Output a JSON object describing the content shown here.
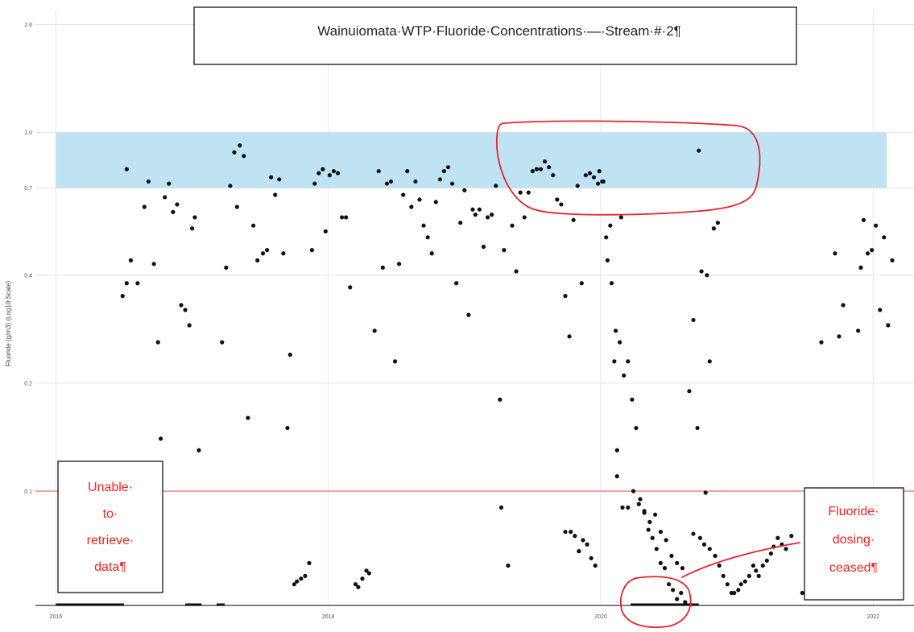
{
  "chart_data": {
    "type": "scatter",
    "title": "Wainuiomata·WTP·Fluoride·Concentrations·—·Stream·#·2¶",
    "ylabel": "Fluoride (g/m3) (Log10 Scale)",
    "xlabel": "",
    "yscale": "log10",
    "ylim": [
      0.048,
      2.2
    ],
    "xlim": [
      2015.85,
      2022.3
    ],
    "x_ticks": [
      2016,
      2018,
      2020,
      2022
    ],
    "x_tick_labels": [
      "2016",
      "2018",
      "2020",
      "2022"
    ],
    "y_ticks": [
      0.1,
      0.2,
      0.4,
      0.7,
      1.0,
      2.0
    ],
    "y_tick_labels": [
      "0.1",
      "0.2",
      "0.4",
      "0.7",
      "1.0",
      "2.0"
    ],
    "grid": true,
    "target_band": {
      "low": 0.7,
      "high": 1.0,
      "color": "#bfe3f2"
    },
    "threshold_line": {
      "value": 0.1,
      "color": "#f5a3a3"
    },
    "point_color": "#111111",
    "baseline_segments": [
      {
        "x_start": 2016.0,
        "x_end": 2016.5
      },
      {
        "x_start": 2016.95,
        "x_end": 2017.07
      },
      {
        "x_start": 2017.18,
        "x_end": 2017.24
      },
      {
        "x_start": 2020.22,
        "x_end": 2020.72
      }
    ],
    "points": [
      [
        2016.52,
        0.79
      ],
      [
        2016.55,
        0.44
      ],
      [
        2016.6,
        0.38
      ],
      [
        2016.65,
        0.62
      ],
      [
        2016.68,
        0.73
      ],
      [
        2016.72,
        0.43
      ],
      [
        2016.75,
        0.26
      ],
      [
        2016.8,
        0.66
      ],
      [
        2016.83,
        0.72
      ],
      [
        2016.86,
        0.6
      ],
      [
        2016.89,
        0.63
      ],
      [
        2016.92,
        0.33
      ],
      [
        2016.95,
        0.32
      ],
      [
        2016.98,
        0.29
      ],
      [
        2017.0,
        0.54
      ],
      [
        2017.02,
        0.58
      ],
      [
        2016.49,
        0.35
      ],
      [
        2016.52,
        0.38
      ],
      [
        2016.77,
        0.14
      ],
      [
        2017.05,
        0.13
      ],
      [
        2017.22,
        0.26
      ],
      [
        2017.25,
        0.42
      ],
      [
        2017.28,
        0.71
      ],
      [
        2017.31,
        0.88
      ],
      [
        2017.33,
        0.62
      ],
      [
        2017.35,
        0.92
      ],
      [
        2017.38,
        0.86
      ],
      [
        2017.41,
        0.16
      ],
      [
        2017.45,
        0.55
      ],
      [
        2017.48,
        0.44
      ],
      [
        2017.52,
        0.46
      ],
      [
        2017.55,
        0.47
      ],
      [
        2017.58,
        0.75
      ],
      [
        2017.61,
        0.67
      ],
      [
        2017.64,
        0.74
      ],
      [
        2017.67,
        0.46
      ],
      [
        2017.7,
        0.15
      ],
      [
        2017.72,
        0.24
      ],
      [
        2017.75,
        0.055
      ],
      [
        2017.77,
        0.056
      ],
      [
        2017.8,
        0.057
      ],
      [
        2017.83,
        0.058
      ],
      [
        2017.86,
        0.063
      ],
      [
        2017.88,
        0.47
      ],
      [
        2017.9,
        0.72
      ],
      [
        2017.93,
        0.77
      ],
      [
        2017.96,
        0.79
      ],
      [
        2017.98,
        0.53
      ],
      [
        2018.01,
        0.76
      ],
      [
        2018.04,
        0.78
      ],
      [
        2018.07,
        0.77
      ],
      [
        2018.1,
        0.58
      ],
      [
        2018.13,
        0.58
      ],
      [
        2018.16,
        0.37
      ],
      [
        2018.2,
        0.055
      ],
      [
        2018.22,
        0.054
      ],
      [
        2018.25,
        0.057
      ],
      [
        2018.28,
        0.06
      ],
      [
        2018.3,
        0.059
      ],
      [
        2018.34,
        0.28
      ],
      [
        2018.37,
        0.78
      ],
      [
        2018.4,
        0.42
      ],
      [
        2018.43,
        0.72
      ],
      [
        2018.46,
        0.73
      ],
      [
        2018.49,
        0.23
      ],
      [
        2018.52,
        0.43
      ],
      [
        2018.55,
        0.67
      ],
      [
        2018.58,
        0.78
      ],
      [
        2018.61,
        0.62
      ],
      [
        2018.64,
        0.73
      ],
      [
        2018.67,
        0.65
      ],
      [
        2018.7,
        0.55
      ],
      [
        2018.73,
        0.51
      ],
      [
        2018.76,
        0.46
      ],
      [
        2018.79,
        0.64
      ],
      [
        2018.82,
        0.74
      ],
      [
        2018.85,
        0.78
      ],
      [
        2018.88,
        0.8
      ],
      [
        2018.91,
        0.72
      ],
      [
        2018.94,
        0.38
      ],
      [
        2018.97,
        0.56
      ],
      [
        2019.0,
        0.69
      ],
      [
        2019.03,
        0.31
      ],
      [
        2019.06,
        0.61
      ],
      [
        2019.08,
        0.59
      ],
      [
        2019.11,
        0.61
      ],
      [
        2019.14,
        0.48
      ],
      [
        2019.17,
        0.58
      ],
      [
        2019.2,
        0.59
      ],
      [
        2019.23,
        0.71
      ],
      [
        2019.26,
        0.18
      ],
      [
        2019.29,
        0.47
      ],
      [
        2019.27,
        0.09
      ],
      [
        2019.32,
        0.062
      ],
      [
        2019.35,
        0.55
      ],
      [
        2019.38,
        0.41
      ],
      [
        2019.41,
        0.68
      ],
      [
        2019.44,
        0.58
      ],
      [
        2019.47,
        0.68
      ],
      [
        2019.5,
        0.78
      ],
      [
        2019.53,
        0.79
      ],
      [
        2019.56,
        0.79
      ],
      [
        2019.59,
        0.83
      ],
      [
        2019.62,
        0.8
      ],
      [
        2019.65,
        0.76
      ],
      [
        2019.68,
        0.65
      ],
      [
        2019.71,
        0.63
      ],
      [
        2019.74,
        0.35
      ],
      [
        2019.77,
        0.27
      ],
      [
        2019.8,
        0.57
      ],
      [
        2019.83,
        0.71
      ],
      [
        2019.86,
        0.38
      ],
      [
        2019.89,
        0.76
      ],
      [
        2019.92,
        0.77
      ],
      [
        2019.95,
        0.75
      ],
      [
        2019.98,
        0.72
      ],
      [
        2020.01,
        0.73
      ],
      [
        2020.04,
        0.51
      ],
      [
        2020.07,
        0.55
      ],
      [
        2020.1,
        0.23
      ],
      [
        2020.12,
        0.13
      ],
      [
        2020.15,
        0.58
      ],
      [
        2019.74,
        0.077
      ],
      [
        2019.78,
        0.077
      ],
      [
        2019.81,
        0.075
      ],
      [
        2019.84,
        0.068
      ],
      [
        2019.87,
        0.073
      ],
      [
        2019.9,
        0.071
      ],
      [
        2019.93,
        0.065
      ],
      [
        2019.96,
        0.062
      ],
      [
        2019.99,
        0.78
      ],
      [
        2020.02,
        0.73
      ],
      [
        2020.05,
        0.44
      ],
      [
        2020.08,
        0.38
      ],
      [
        2020.11,
        0.28
      ],
      [
        2020.14,
        0.26
      ],
      [
        2020.17,
        0.21
      ],
      [
        2020.2,
        0.23
      ],
      [
        2020.23,
        0.18
      ],
      [
        2020.26,
        0.15
      ],
      [
        2020.29,
        0.095
      ],
      [
        2020.32,
        0.087
      ],
      [
        2020.35,
        0.078
      ],
      [
        2020.38,
        0.074
      ],
      [
        2020.41,
        0.069
      ],
      [
        2020.44,
        0.063
      ],
      [
        2020.47,
        0.061
      ],
      [
        2020.5,
        0.055
      ],
      [
        2020.53,
        0.053
      ],
      [
        2020.56,
        0.05
      ],
      [
        2020.59,
        0.052
      ],
      [
        2020.62,
        0.049
      ],
      [
        2020.12,
        0.11
      ],
      [
        2020.16,
        0.09
      ],
      [
        2020.2,
        0.09
      ],
      [
        2020.24,
        0.1
      ],
      [
        2020.28,
        0.092
      ],
      [
        2020.32,
        0.088
      ],
      [
        2020.36,
        0.082
      ],
      [
        2020.4,
        0.086
      ],
      [
        2020.44,
        0.077
      ],
      [
        2020.48,
        0.073
      ],
      [
        2020.52,
        0.066
      ],
      [
        2020.56,
        0.063
      ],
      [
        2020.6,
        0.061
      ],
      [
        2020.65,
        0.19
      ],
      [
        2020.68,
        0.3
      ],
      [
        2020.71,
        0.15
      ],
      [
        2020.74,
        0.41
      ],
      [
        2020.77,
        0.099
      ],
      [
        2020.8,
        0.23
      ],
      [
        2020.83,
        0.54
      ],
      [
        2020.86,
        0.56
      ],
      [
        2020.68,
        0.076
      ],
      [
        2020.73,
        0.074
      ],
      [
        2020.76,
        0.071
      ],
      [
        2020.8,
        0.069
      ],
      [
        2020.84,
        0.066
      ],
      [
        2020.87,
        0.062
      ],
      [
        2020.9,
        0.058
      ],
      [
        2020.93,
        0.055
      ],
      [
        2020.96,
        0.052
      ],
      [
        2020.98,
        0.052
      ],
      [
        2021.01,
        0.053
      ],
      [
        2021.03,
        0.055
      ],
      [
        2021.06,
        0.056
      ],
      [
        2021.09,
        0.058
      ],
      [
        2021.12,
        0.062
      ],
      [
        2021.14,
        0.06
      ],
      [
        2021.16,
        0.058
      ],
      [
        2021.19,
        0.062
      ],
      [
        2021.22,
        0.064
      ],
      [
        2021.25,
        0.067
      ],
      [
        2021.27,
        0.07
      ],
      [
        2021.3,
        0.074
      ],
      [
        2021.33,
        0.071
      ],
      [
        2021.36,
        0.069
      ],
      [
        2021.4,
        0.075
      ],
      [
        2021.48,
        0.052
      ],
      [
        2021.52,
        0.068
      ],
      [
        2021.62,
        0.26
      ],
      [
        2021.68,
        0.098
      ],
      [
        2021.72,
        0.46
      ],
      [
        2021.75,
        0.27
      ],
      [
        2021.78,
        0.33
      ],
      [
        2021.8,
        0.071
      ],
      [
        2021.83,
        0.058
      ],
      [
        2021.86,
        0.058
      ],
      [
        2021.89,
        0.28
      ],
      [
        2021.91,
        0.42
      ],
      [
        2021.93,
        0.57
      ],
      [
        2021.96,
        0.46
      ],
      [
        2021.99,
        0.47
      ],
      [
        2022.02,
        0.55
      ],
      [
        2022.05,
        0.32
      ],
      [
        2022.08,
        0.51
      ],
      [
        2022.11,
        0.29
      ],
      [
        2022.14,
        0.44
      ],
      [
        2020.72,
        0.89
      ],
      [
        2020.78,
        0.4
      ]
    ]
  },
  "title_box": {
    "text": "Wainuiomata·WTP·Fluoride·Concentrations·—·Stream·#·2¶"
  },
  "note_left": {
    "lines": [
      "Unable·",
      "to·",
      "retrieve·",
      "data¶"
    ]
  },
  "note_right": {
    "lines": [
      "Fluoride·",
      "dosing·",
      "ceased¶"
    ]
  },
  "annotation_color": "#e8232f"
}
